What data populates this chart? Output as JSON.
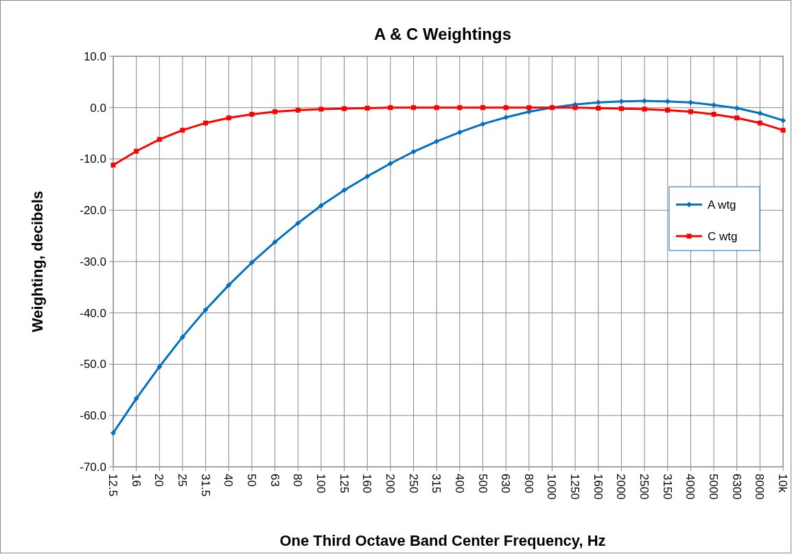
{
  "chart_data": {
    "type": "line",
    "title": "A & C Weightings",
    "xlabel": "One Third Octave Band Center Frequency, Hz",
    "ylabel": "Weighting, decibels",
    "categories": [
      "12.5",
      "16",
      "20",
      "25",
      "31.5",
      "40",
      "50",
      "63",
      "80",
      "100",
      "125",
      "160",
      "200",
      "250",
      "315",
      "400",
      "500",
      "630",
      "800",
      "1000",
      "1250",
      "1600",
      "2000",
      "2500",
      "3150",
      "4000",
      "5000",
      "6300",
      "8000",
      "10k"
    ],
    "series": [
      {
        "name": "A wtg",
        "color": "#0070c0",
        "marker": "diamond",
        "values": [
          -63.4,
          -56.7,
          -50.5,
          -44.7,
          -39.4,
          -34.6,
          -30.2,
          -26.2,
          -22.5,
          -19.1,
          -16.1,
          -13.4,
          -10.9,
          -8.6,
          -6.6,
          -4.8,
          -3.2,
          -1.9,
          -0.8,
          0,
          0.6,
          1.0,
          1.2,
          1.3,
          1.2,
          1.0,
          0.5,
          -0.1,
          -1.1,
          -2.5
        ]
      },
      {
        "name": "C wtg",
        "color": "#ff0000",
        "marker": "square",
        "values": [
          -11.2,
          -8.5,
          -6.2,
          -4.4,
          -3.0,
          -2.0,
          -1.3,
          -0.8,
          -0.5,
          -0.3,
          -0.2,
          -0.1,
          0,
          0,
          0,
          0,
          0,
          0,
          0,
          0,
          0,
          -0.1,
          -0.2,
          -0.3,
          -0.5,
          -0.8,
          -1.3,
          -2.0,
          -3.0,
          -4.4
        ]
      }
    ],
    "ylim": [
      -70,
      10
    ],
    "yticks": [
      {
        "value": -70,
        "label": "-70.0"
      },
      {
        "value": -60,
        "label": "-60.0"
      },
      {
        "value": -50,
        "label": "-50.0"
      },
      {
        "value": -40,
        "label": "-40.0"
      },
      {
        "value": -30,
        "label": "-30.0"
      },
      {
        "value": -20,
        "label": "-20.0"
      },
      {
        "value": -10,
        "label": "-10.0"
      },
      {
        "value": 0,
        "label": "0.0"
      },
      {
        "value": 10,
        "label": "10.0"
      }
    ],
    "grid": true,
    "legend": "right",
    "line_style": "solid"
  }
}
